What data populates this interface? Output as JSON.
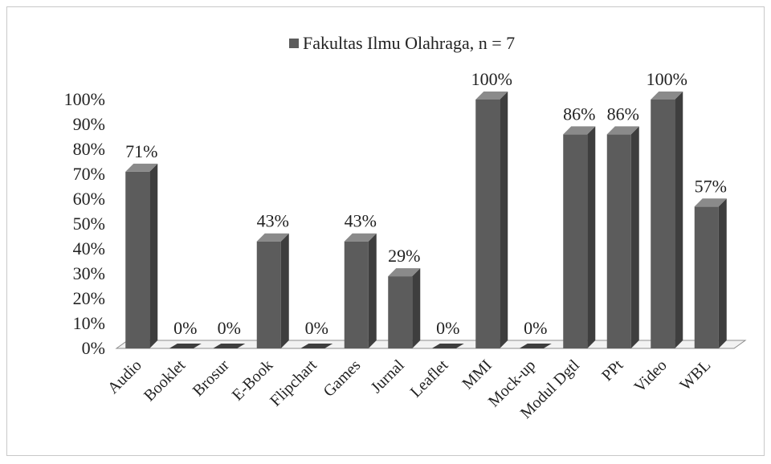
{
  "chart_data": {
    "type": "bar",
    "title": "",
    "xlabel": "",
    "ylabel": "",
    "ylim": [
      0,
      100
    ],
    "grid": false,
    "legend_position": "top",
    "y_tick_labels": [
      "0%",
      "10%",
      "20%",
      "30%",
      "40%",
      "50%",
      "60%",
      "70%",
      "80%",
      "90%",
      "100%"
    ],
    "categories": [
      "Audio",
      "Booklet",
      "Brosur",
      "E-Book",
      "Flipchart",
      "Games",
      "Jurnal",
      "Leaflet",
      "MMI",
      "Mock-up",
      "Modul Dgtl",
      "PPt",
      "Video",
      "WBL"
    ],
    "series": [
      {
        "name": "Fakultas Ilmu Olahraga, n = 7",
        "values": [
          71,
          0,
          0,
          43,
          0,
          43,
          29,
          0,
          100,
          0,
          86,
          86,
          100,
          57
        ],
        "labels": [
          "71%",
          "0%",
          "0%",
          "43%",
          "0%",
          "43%",
          "29%",
          "0%",
          "100%",
          "0%",
          "86%",
          "86%",
          "100%",
          "57%"
        ]
      }
    ],
    "colors": {
      "bar_front": "#5c5c5c",
      "bar_side": "#3e3e3e",
      "bar_top": "#8a8a8a",
      "floor": "#f2f2f2",
      "floor_edge": "#8c8c8c"
    }
  }
}
